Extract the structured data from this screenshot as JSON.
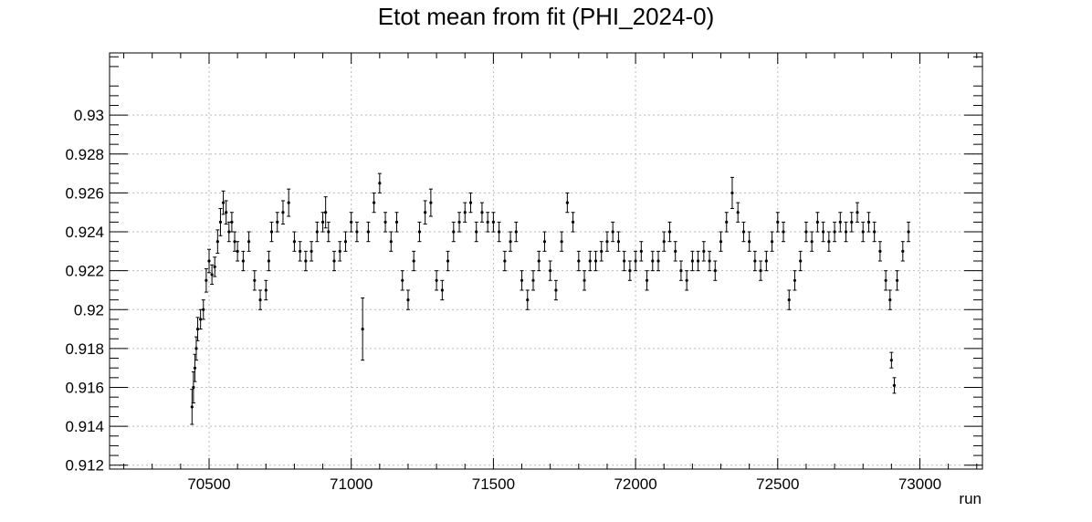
{
  "chart_data": {
    "type": "scatter",
    "title": "Etot mean from fit (PHI_2024-0)",
    "xlabel": "run",
    "ylabel": "",
    "xlim": [
      70150,
      73220
    ],
    "ylim": [
      0.9118,
      0.9332
    ],
    "x_ticks": [
      70500,
      71000,
      71500,
      72000,
      72500,
      73000
    ],
    "x_tick_labels": [
      "70500",
      "71000",
      "71500",
      "72000",
      "72500",
      "73000"
    ],
    "y_ticks": [
      0.912,
      0.914,
      0.916,
      0.918,
      0.92,
      0.922,
      0.924,
      0.926,
      0.928,
      0.93
    ],
    "y_tick_labels": [
      "0.912",
      "0.914",
      "0.916",
      "0.918",
      "0.92",
      "0.922",
      "0.924",
      "0.926",
      "0.928",
      "0.93"
    ],
    "grid": true,
    "error_bars": true,
    "series": [
      {
        "x": [
          70440,
          70445,
          70450,
          70455,
          70460,
          70470,
          70480,
          70490,
          70500,
          70510,
          70520,
          70530,
          70540,
          70550,
          70560,
          70570,
          70580,
          70590,
          70600,
          70620,
          70640,
          70660,
          70680,
          70700,
          70710,
          70720,
          70740,
          70760,
          70780,
          70800,
          70820,
          70840,
          70860,
          70880,
          70900,
          70910,
          70920,
          70940,
          70960,
          70980,
          71000,
          71020,
          71040,
          71060,
          71080,
          71100,
          71120,
          71140,
          71160,
          71180,
          71200,
          71220,
          71240,
          71260,
          71280,
          71300,
          71320,
          71340,
          71360,
          71380,
          71400,
          71420,
          71440,
          71460,
          71480,
          71500,
          71520,
          71540,
          71560,
          71580,
          71600,
          71620,
          71640,
          71660,
          71680,
          71700,
          71720,
          71740,
          71760,
          71780,
          71800,
          71820,
          71840,
          71860,
          71880,
          71900,
          71920,
          71940,
          71960,
          71980,
          72000,
          72020,
          72040,
          72060,
          72080,
          72100,
          72120,
          72140,
          72160,
          72180,
          72200,
          72220,
          72240,
          72260,
          72280,
          72300,
          72320,
          72340,
          72360,
          72380,
          72400,
          72420,
          72440,
          72460,
          72480,
          72500,
          72520,
          72540,
          72560,
          72580,
          72600,
          72620,
          72640,
          72660,
          72680,
          72700,
          72720,
          72740,
          72760,
          72780,
          72800,
          72820,
          72840,
          72860,
          72880,
          72895,
          72900,
          72910,
          72920,
          72940,
          72960
        ],
        "y": [
          0.915,
          0.916,
          0.917,
          0.918,
          0.919,
          0.9195,
          0.92,
          0.9215,
          0.9225,
          0.9218,
          0.9222,
          0.9235,
          0.9245,
          0.9255,
          0.925,
          0.924,
          0.9245,
          0.9235,
          0.923,
          0.9225,
          0.9235,
          0.9215,
          0.9205,
          0.921,
          0.9225,
          0.924,
          0.9245,
          0.925,
          0.9255,
          0.9235,
          0.923,
          0.9225,
          0.923,
          0.924,
          0.9245,
          0.925,
          0.924,
          0.9225,
          0.923,
          0.9235,
          0.9245,
          0.924,
          0.919,
          0.924,
          0.9255,
          0.9265,
          0.9245,
          0.9235,
          0.9245,
          0.9215,
          0.9205,
          0.9225,
          0.924,
          0.925,
          0.9255,
          0.9215,
          0.921,
          0.9225,
          0.924,
          0.9245,
          0.925,
          0.9255,
          0.924,
          0.925,
          0.9245,
          0.9245,
          0.924,
          0.9225,
          0.9235,
          0.924,
          0.9215,
          0.9205,
          0.9215,
          0.9225,
          0.9235,
          0.922,
          0.921,
          0.9235,
          0.9255,
          0.9245,
          0.9225,
          0.9215,
          0.9225,
          0.9225,
          0.923,
          0.9235,
          0.924,
          0.9235,
          0.9225,
          0.922,
          0.9225,
          0.923,
          0.9215,
          0.9225,
          0.9225,
          0.9235,
          0.924,
          0.923,
          0.922,
          0.9215,
          0.9225,
          0.9225,
          0.923,
          0.9225,
          0.922,
          0.9235,
          0.9245,
          0.926,
          0.925,
          0.924,
          0.9235,
          0.9225,
          0.922,
          0.9225,
          0.9235,
          0.9245,
          0.924,
          0.9205,
          0.9215,
          0.9225,
          0.924,
          0.9235,
          0.9245,
          0.924,
          0.9235,
          0.924,
          0.9245,
          0.924,
          0.9245,
          0.925,
          0.924,
          0.9245,
          0.924,
          0.923,
          0.9215,
          0.9205,
          0.9174,
          0.9161,
          0.9215,
          0.923,
          0.924
        ],
        "yerr": [
          0.0009,
          0.0008,
          0.0007,
          0.0006,
          0.0006,
          0.0005,
          0.0005,
          0.0006,
          0.0006,
          0.0005,
          0.0005,
          0.0006,
          0.0007,
          0.0006,
          0.0006,
          0.0005,
          0.0005,
          0.0005,
          0.0005,
          0.0005,
          0.0005,
          0.0005,
          0.0005,
          0.0005,
          0.0005,
          0.0005,
          0.0005,
          0.0006,
          0.0007,
          0.0005,
          0.0005,
          0.0005,
          0.0005,
          0.0005,
          0.0005,
          0.0008,
          0.0005,
          0.0005,
          0.0005,
          0.0005,
          0.0005,
          0.0005,
          0.0016,
          0.0005,
          0.0005,
          0.0005,
          0.0005,
          0.0005,
          0.0005,
          0.0005,
          0.0005,
          0.0005,
          0.0005,
          0.0006,
          0.0007,
          0.0005,
          0.0005,
          0.0005,
          0.0005,
          0.0005,
          0.0005,
          0.0005,
          0.0005,
          0.0005,
          0.0005,
          0.0005,
          0.0005,
          0.0005,
          0.0005,
          0.0005,
          0.0005,
          0.0005,
          0.0005,
          0.0005,
          0.0005,
          0.0005,
          0.0005,
          0.0005,
          0.0005,
          0.0005,
          0.0005,
          0.0005,
          0.0005,
          0.0005,
          0.0005,
          0.0005,
          0.0005,
          0.0005,
          0.0005,
          0.0005,
          0.0005,
          0.0005,
          0.0005,
          0.0005,
          0.0005,
          0.0005,
          0.0005,
          0.0005,
          0.0005,
          0.0005,
          0.0005,
          0.0005,
          0.0005,
          0.0005,
          0.0005,
          0.0005,
          0.0005,
          0.0008,
          0.0005,
          0.0005,
          0.0005,
          0.0005,
          0.0005,
          0.0005,
          0.0005,
          0.0005,
          0.0005,
          0.0005,
          0.0005,
          0.0005,
          0.0005,
          0.0005,
          0.0005,
          0.0005,
          0.0005,
          0.0005,
          0.0005,
          0.0005,
          0.0005,
          0.0005,
          0.0005,
          0.0005,
          0.0005,
          0.0005,
          0.0005,
          0.0005,
          0.0004,
          0.0004,
          0.0005,
          0.0005,
          0.0005
        ]
      }
    ]
  }
}
